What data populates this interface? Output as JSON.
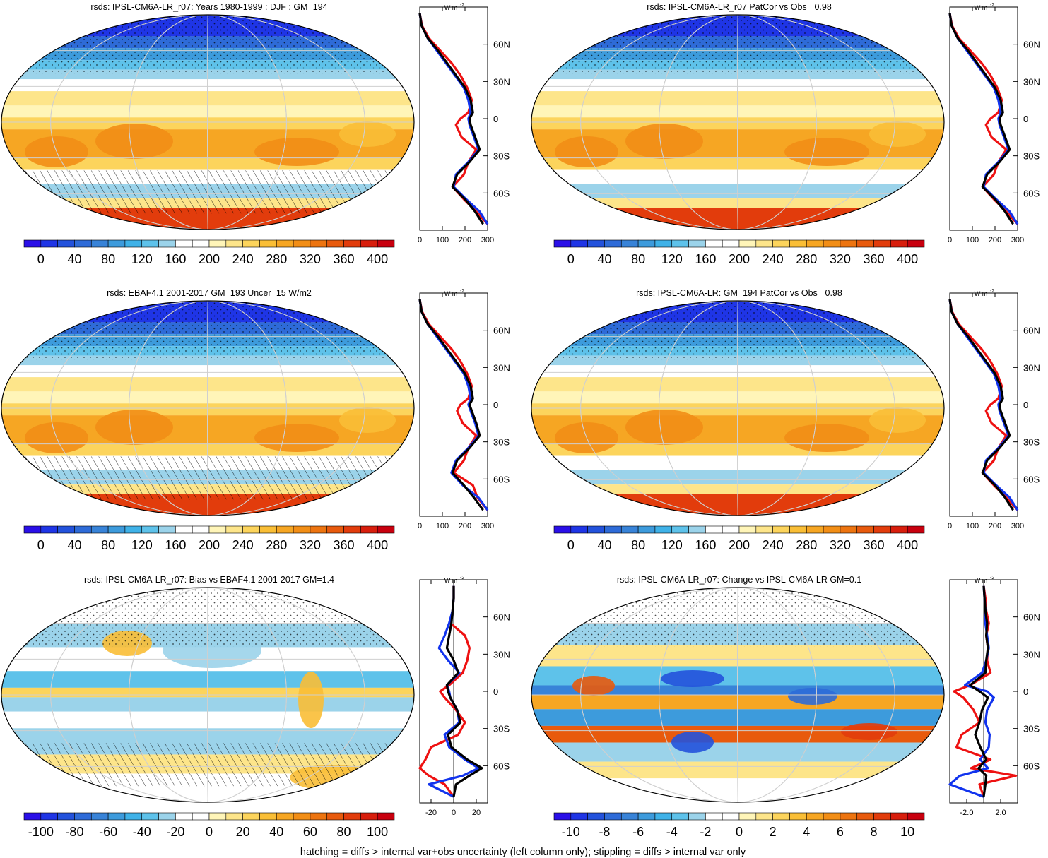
{
  "figure": {
    "footnote": "hatching = diffs > internal var+obs uncertainty (left column only); stippling = diffs > internal var only",
    "profile_unit_label": "W m",
    "profile_unit_exponent": "-2",
    "lat_ticks": [
      "60N",
      "30N",
      "0",
      "30S",
      "60S"
    ]
  },
  "colorbars": {
    "absolute": {
      "labels": [
        "0",
        "40",
        "80",
        "120",
        "160",
        "200",
        "240",
        "280",
        "320",
        "360",
        "400"
      ],
      "colors": [
        "#2a0fe8",
        "#1f35e6",
        "#2352dc",
        "#2e6bd8",
        "#3883d8",
        "#3d9bdc",
        "#3fb2e8",
        "#5ec2ea",
        "#9bd3ea",
        "#ffffff",
        "#ffffff",
        "#fff5b8",
        "#fde58a",
        "#fcd45c",
        "#f9be36",
        "#f6a623",
        "#f28e16",
        "#ed7410",
        "#e85a0d",
        "#e23c0c",
        "#d81e0d",
        "#c8000e"
      ]
    },
    "bias": {
      "labels": [
        "-100",
        "-80",
        "-60",
        "-40",
        "-20",
        "0",
        "20",
        "40",
        "60",
        "80",
        "100"
      ],
      "colors": [
        "#2a0fe8",
        "#1f35e6",
        "#2352dc",
        "#2e6bd8",
        "#3883d8",
        "#3d9bdc",
        "#3fb2e8",
        "#5ec2ea",
        "#9bd3ea",
        "#ffffff",
        "#ffffff",
        "#fff5b8",
        "#fde58a",
        "#fcd45c",
        "#f9be36",
        "#f6a623",
        "#f28e16",
        "#ed7410",
        "#e85a0d",
        "#e23c0c",
        "#d81e0d",
        "#c8000e"
      ]
    },
    "change": {
      "labels": [
        "-10",
        "-8",
        "-6",
        "-4",
        "-2",
        "0",
        "2",
        "4",
        "6",
        "8",
        "10"
      ],
      "colors": [
        "#2a0fe8",
        "#1f35e6",
        "#2352dc",
        "#2e6bd8",
        "#3883d8",
        "#3d9bdc",
        "#3fb2e8",
        "#5ec2ea",
        "#9bd3ea",
        "#ffffff",
        "#ffffff",
        "#fff5b8",
        "#fde58a",
        "#fcd45c",
        "#f9be36",
        "#f6a623",
        "#f28e16",
        "#ed7410",
        "#e85a0d",
        "#e23c0c",
        "#d81e0d",
        "#c8000e"
      ]
    }
  },
  "chart_data": [
    {
      "type": "heatmap",
      "title": "rsds: IPSL-CM6A-LR_r07: Years 1980-1999 : DJF : GM=194",
      "map_kind": "absolute",
      "colorbar": "absolute",
      "profile": {
        "xlim": [
          0,
          300
        ],
        "xticks": [
          "0",
          "100",
          "200",
          "300"
        ],
        "lat": [
          85,
          75,
          65,
          55,
          45,
          35,
          25,
          15,
          5,
          0,
          -5,
          -15,
          -25,
          -35,
          -45,
          -55,
          -65,
          -75,
          -85
        ],
        "series": [
          {
            "name": "red",
            "color": "#ee1111",
            "values": [
              0,
              10,
              40,
              90,
              140,
              180,
              210,
              230,
              215,
              180,
              160,
              185,
              250,
              215,
              195,
              145,
              195,
              250,
              300
            ]
          },
          {
            "name": "blue",
            "color": "#1133ee",
            "values": [
              0,
              8,
              35,
              75,
              115,
              155,
              195,
              215,
              225,
              215,
              220,
              240,
              260,
              215,
              160,
              150,
              205,
              265,
              300
            ]
          },
          {
            "name": "black",
            "color": "#000000",
            "values": [
              0,
              8,
              35,
              80,
              120,
              160,
              200,
              225,
              235,
              220,
              225,
              245,
              265,
              220,
              165,
              145,
              200,
              245,
              280
            ]
          }
        ]
      }
    },
    {
      "type": "heatmap",
      "title": "rsds: IPSL-CM6A-LR_r07 PatCor vs Obs =0.98",
      "map_kind": "absolute",
      "colorbar": "absolute",
      "profile": {
        "xlim": [
          0,
          300
        ],
        "xticks": [
          "0",
          "100",
          "200",
          "300"
        ],
        "lat": [
          85,
          75,
          65,
          55,
          45,
          35,
          25,
          15,
          5,
          0,
          -5,
          -15,
          -25,
          -35,
          -45,
          -55,
          -65,
          -75,
          -85
        ],
        "series": [
          {
            "name": "red",
            "color": "#ee1111",
            "values": [
              0,
              10,
              40,
              90,
              140,
              180,
              210,
              230,
              215,
              180,
              160,
              185,
              250,
              215,
              195,
              145,
              195,
              250,
              300
            ]
          },
          {
            "name": "blue",
            "color": "#1133ee",
            "values": [
              0,
              8,
              35,
              75,
              115,
              155,
              195,
              215,
              225,
              215,
              220,
              240,
              260,
              215,
              160,
              150,
              205,
              265,
              300
            ]
          },
          {
            "name": "black",
            "color": "#000000",
            "values": [
              0,
              8,
              35,
              80,
              120,
              160,
              200,
              225,
              235,
              220,
              225,
              245,
              265,
              220,
              165,
              145,
              200,
              245,
              280
            ]
          }
        ]
      }
    },
    {
      "type": "heatmap",
      "title": "rsds: EBAF4.1 2001-2017 GM=193 Uncer=15 W/m2",
      "map_kind": "absolute",
      "colorbar": "absolute",
      "profile": {
        "xlim": [
          0,
          300
        ],
        "xticks": [
          "0",
          "100",
          "200",
          "300"
        ],
        "lat": [
          85,
          75,
          65,
          55,
          45,
          35,
          25,
          15,
          5,
          0,
          -5,
          -15,
          -25,
          -35,
          -45,
          -55,
          -65,
          -75,
          -85
        ],
        "series": [
          {
            "name": "red",
            "color": "#ee1111",
            "values": [
              0,
              10,
              40,
              90,
              140,
              180,
              210,
              230,
              215,
              180,
              165,
              190,
              250,
              215,
              195,
              150,
              235,
              255,
              300
            ]
          },
          {
            "name": "blue",
            "color": "#1133ee",
            "values": [
              0,
              8,
              35,
              75,
              115,
              155,
              195,
              215,
              225,
              215,
              225,
              245,
              260,
              215,
              160,
              140,
              190,
              260,
              300
            ]
          },
          {
            "name": "black",
            "color": "#000000",
            "values": [
              0,
              8,
              35,
              80,
              120,
              160,
              200,
              225,
              235,
              220,
              230,
              250,
              265,
              220,
              165,
              145,
              195,
              240,
              280
            ]
          }
        ]
      }
    },
    {
      "type": "heatmap",
      "title": "rsds: IPSL-CM6A-LR: GM=194 PatCor vs Obs =0.98",
      "map_kind": "absolute",
      "colorbar": "absolute",
      "profile": {
        "xlim": [
          0,
          300
        ],
        "xticks": [
          "0",
          "100",
          "200",
          "300"
        ],
        "lat": [
          85,
          75,
          65,
          55,
          45,
          35,
          25,
          15,
          5,
          0,
          -5,
          -15,
          -25,
          -35,
          -45,
          -55,
          -65,
          -75,
          -85
        ],
        "series": [
          {
            "name": "red",
            "color": "#ee1111",
            "values": [
              0,
              10,
              40,
              90,
              140,
              180,
              210,
              230,
              215,
              180,
              160,
              185,
              250,
              215,
              195,
              145,
              195,
              250,
              300
            ]
          },
          {
            "name": "blue",
            "color": "#1133ee",
            "values": [
              0,
              8,
              35,
              75,
              115,
              155,
              195,
              215,
              225,
              215,
              220,
              240,
              260,
              215,
              160,
              150,
              205,
              265,
              300
            ]
          },
          {
            "name": "black",
            "color": "#000000",
            "values": [
              0,
              8,
              35,
              80,
              120,
              160,
              200,
              225,
              235,
              220,
              225,
              245,
              265,
              220,
              165,
              145,
              200,
              245,
              280
            ]
          }
        ]
      }
    },
    {
      "type": "heatmap",
      "title": "rsds: IPSL-CM6A-LR_r07: Bias vs EBAF4.1 2001-2017 GM=1.4",
      "map_kind": "bias",
      "colorbar": "bias",
      "profile": {
        "xlim": [
          -30,
          30
        ],
        "xticks": [
          "-20",
          "0",
          "20"
        ],
        "lat": [
          85,
          75,
          65,
          55,
          45,
          35,
          25,
          15,
          5,
          0,
          -5,
          -15,
          -25,
          -35,
          -45,
          -55,
          -62,
          -68,
          -75,
          -85
        ],
        "series": [
          {
            "name": "red",
            "color": "#ee1111",
            "values": [
              0,
              0,
              -1,
              -3,
              10,
              14,
              12,
              8,
              -4,
              -12,
              -8,
              2,
              10,
              4,
              -20,
              -25,
              -30,
              -22,
              -8,
              0
            ]
          },
          {
            "name": "blue",
            "color": "#1133ee",
            "values": [
              0,
              0,
              -1,
              -4,
              -8,
              -13,
              -5,
              5,
              -6,
              -4,
              -3,
              3,
              5,
              -8,
              -4,
              10,
              22,
              8,
              -22,
              0
            ]
          },
          {
            "name": "black",
            "color": "#000000",
            "values": [
              0,
              0,
              -1,
              -2,
              -4,
              -6,
              0,
              4,
              -6,
              -5,
              -3,
              3,
              6,
              -5,
              -2,
              12,
              25,
              14,
              2,
              0
            ]
          }
        ]
      }
    },
    {
      "type": "heatmap",
      "title": "rsds: IPSL-CM6A-LR_r07: Change vs IPSL-CM6A-LR GM=0.1",
      "map_kind": "change",
      "colorbar": "change",
      "profile": {
        "xlim": [
          -4,
          4
        ],
        "xticks": [
          "-2.0",
          "2.0"
        ],
        "lat": [
          85,
          75,
          65,
          55,
          45,
          35,
          25,
          15,
          5,
          0,
          -5,
          -15,
          -25,
          -35,
          -45,
          -55,
          -62,
          -68,
          -75,
          -85
        ],
        "series": [
          {
            "name": "red",
            "color": "#ee1111",
            "values": [
              0,
              0.2,
              0.3,
              0.6,
              0.3,
              0.5,
              0.4,
              0.8,
              -1.6,
              -3.5,
              -2.4,
              -1.2,
              -0.5,
              -2.6,
              -3.2,
              0.8,
              -1.5,
              3.8,
              -0.5,
              0
            ]
          },
          {
            "name": "blue",
            "color": "#1133ee",
            "values": [
              0,
              0.1,
              0.2,
              0.2,
              0.4,
              0.6,
              0.3,
              -0.2,
              -2.2,
              0.4,
              1.2,
              0.4,
              0.2,
              0.7,
              0.6,
              -0.4,
              0.5,
              -2.8,
              -4,
              0
            ]
          },
          {
            "name": "black",
            "color": "#000000",
            "values": [
              0,
              0.1,
              0.2,
              0.4,
              0.3,
              0.5,
              0.3,
              0.2,
              -1.6,
              -0.5,
              0.5,
              -0.2,
              -0.5,
              -1.0,
              -0.4,
              0.3,
              -0.6,
              0.3,
              0.2,
              0
            ]
          }
        ]
      }
    }
  ]
}
